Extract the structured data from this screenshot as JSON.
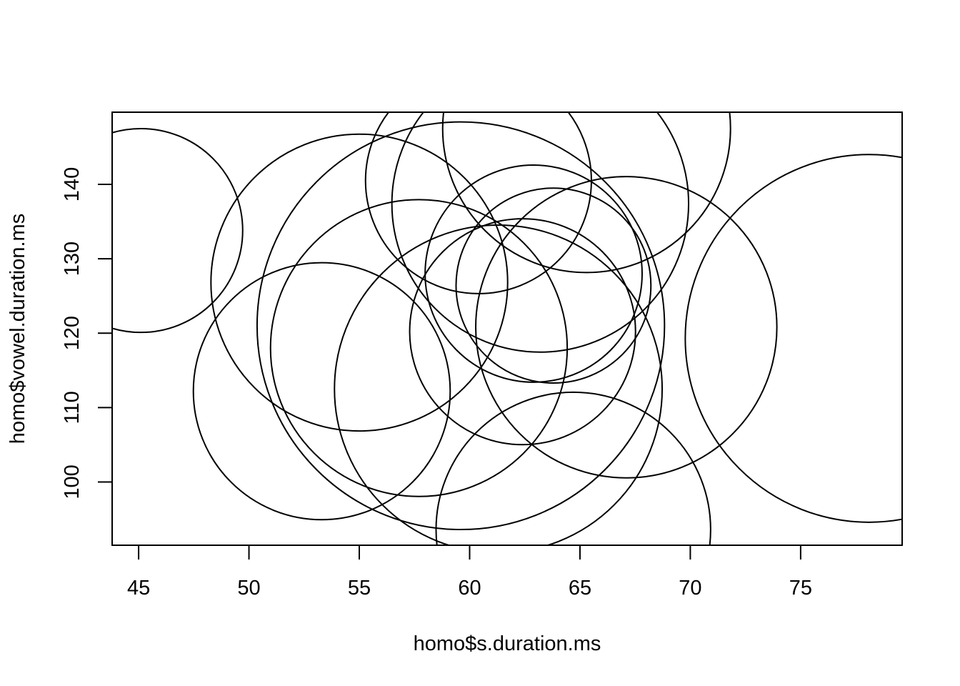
{
  "chart_data": {
    "type": "scatter",
    "marker": "circle",
    "title": "",
    "xlabel": "homo$s.duration.ms",
    "ylabel": "homo$vowel.duration.ms",
    "xlim": [
      43.8,
      79.6
    ],
    "ylim": [
      91.5,
      149.7
    ],
    "xticks": [
      45,
      50,
      55,
      60,
      65,
      70,
      75
    ],
    "yticks": [
      100,
      110,
      120,
      130,
      140
    ],
    "grid": false,
    "legend": "none",
    "points": [
      {
        "x": 45.1,
        "y": 133.8,
        "size": 4.6
      },
      {
        "x": 55.0,
        "y": 126.8,
        "size": 6.7
      },
      {
        "x": 53.3,
        "y": 112.2,
        "size": 5.8
      },
      {
        "x": 57.7,
        "y": 118.0,
        "size": 6.7
      },
      {
        "x": 59.6,
        "y": 121.0,
        "size": 9.2
      },
      {
        "x": 60.4,
        "y": 140.5,
        "size": 5.1
      },
      {
        "x": 61.3,
        "y": 112.5,
        "size": 7.4
      },
      {
        "x": 65.3,
        "y": 147.5,
        "size": 6.5
      },
      {
        "x": 62.4,
        "y": 120.2,
        "size": 5.1
      },
      {
        "x": 63.8,
        "y": 126.4,
        "size": 4.4
      },
      {
        "x": 64.7,
        "y": 93.6,
        "size": 6.2
      },
      {
        "x": 62.9,
        "y": 128.0,
        "size": 4.9
      },
      {
        "x": 67.1,
        "y": 120.8,
        "size": 6.8
      },
      {
        "x": 63.2,
        "y": 137.4,
        "size": 6.7
      },
      {
        "x": 78.1,
        "y": 119.3,
        "size": 8.3
      }
    ]
  }
}
